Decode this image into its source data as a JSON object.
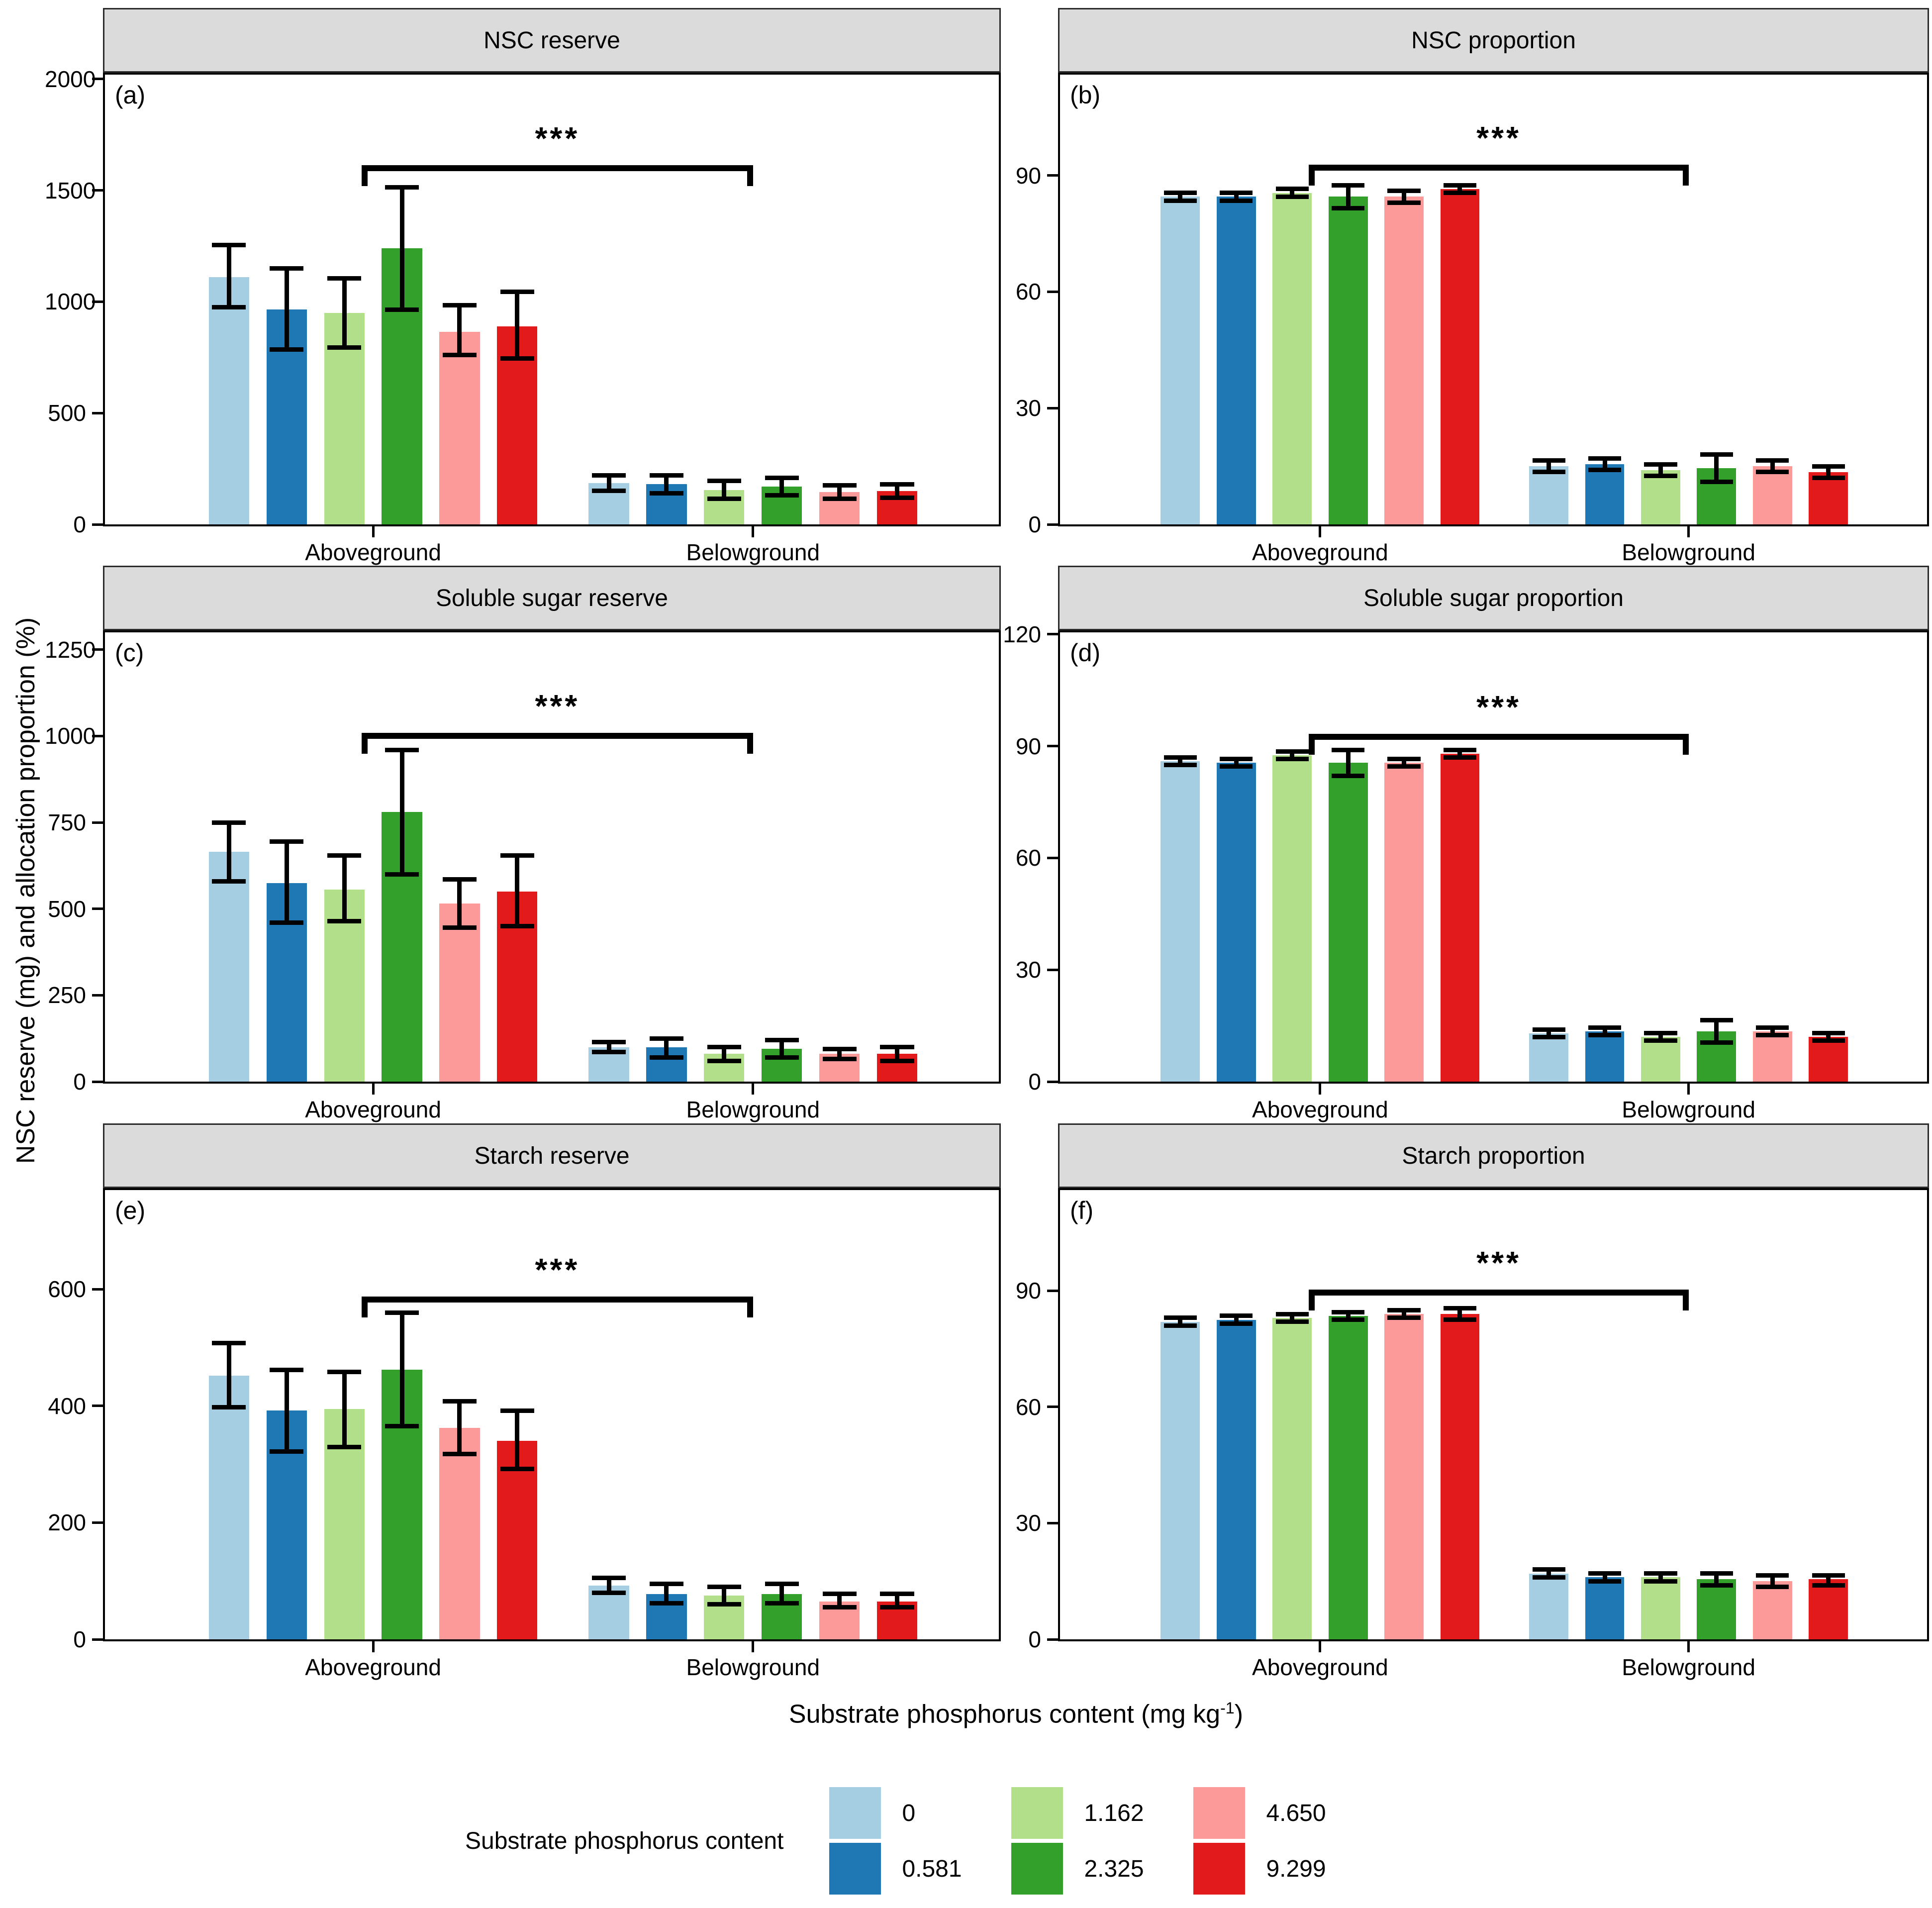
{
  "figure": {
    "y_axis_label": "NSC reserve (mg) and allocation proportion (%)",
    "x_axis_title": {
      "main": "Substrate phosphorus content (mg kg",
      "sup": "-1",
      "close": ")"
    }
  },
  "legend": {
    "title": "Substrate phosphorus content",
    "items": [
      {
        "label": "0",
        "color": "#A6CEE3"
      },
      {
        "label": "0.581",
        "color": "#1F78B4"
      },
      {
        "label": "1.162",
        "color": "#B2DF8A"
      },
      {
        "label": "2.325",
        "color": "#33A02C"
      },
      {
        "label": "4.650",
        "color": "#FB9A99"
      },
      {
        "label": "9.299",
        "color": "#E31A1C"
      }
    ],
    "columns": [
      [
        0,
        1
      ],
      [
        2,
        3
      ],
      [
        4,
        5
      ]
    ]
  },
  "chart_data": [
    {
      "id": "a",
      "letter": "(a)",
      "title": "NSC reserve",
      "type": "bar",
      "unit": "mg",
      "ylim": [
        0,
        2020
      ],
      "yticks": [
        0,
        500,
        1000,
        1500,
        2000
      ],
      "categories": [
        "Aboveground",
        "Belowground"
      ],
      "series": [
        {
          "name": "0",
          "color": "#A6CEE3",
          "values": [
            1110,
            185
          ],
          "err_low": [
            975,
            150
          ],
          "err_high": [
            1255,
            220
          ]
        },
        {
          "name": "0.581",
          "color": "#1F78B4",
          "values": [
            965,
            180
          ],
          "err_low": [
            785,
            140
          ],
          "err_high": [
            1150,
            220
          ]
        },
        {
          "name": "1.162",
          "color": "#B2DF8A",
          "values": [
            950,
            155
          ],
          "err_low": [
            795,
            115
          ],
          "err_high": [
            1105,
            195
          ]
        },
        {
          "name": "2.325",
          "color": "#33A02C",
          "values": [
            1240,
            170
          ],
          "err_low": [
            965,
            130
          ],
          "err_high": [
            1515,
            210
          ]
        },
        {
          "name": "4.650",
          "color": "#FB9A99",
          "values": [
            865,
            145
          ],
          "err_low": [
            760,
            115
          ],
          "err_high": [
            985,
            175
          ]
        },
        {
          "name": "9.299",
          "color": "#E31A1C",
          "values": [
            890,
            150
          ],
          "err_low": [
            745,
            120
          ],
          "err_high": [
            1045,
            180
          ]
        }
      ],
      "significance": {
        "label": "***",
        "value": 1600,
        "from_category": 0,
        "from_series": 3,
        "to_category": 1
      }
    },
    {
      "id": "b",
      "letter": "(b)",
      "title": "NSC proportion",
      "type": "bar",
      "unit": "%",
      "ylim": [
        0,
        116
      ],
      "yticks": [
        0,
        30,
        60,
        90
      ],
      "categories": [
        "Aboveground",
        "Belowground"
      ],
      "series": [
        {
          "name": "0",
          "color": "#A6CEE3",
          "values": [
            84.5,
            15
          ],
          "err_low": [
            83.5,
            13.5
          ],
          "err_high": [
            85.5,
            16.5
          ]
        },
        {
          "name": "0.581",
          "color": "#1F78B4",
          "values": [
            84.5,
            15.5
          ],
          "err_low": [
            83.5,
            14
          ],
          "err_high": [
            85.5,
            17
          ]
        },
        {
          "name": "1.162",
          "color": "#B2DF8A",
          "values": [
            85.5,
            14
          ],
          "err_low": [
            84.5,
            12.5
          ],
          "err_high": [
            86.5,
            15.5
          ]
        },
        {
          "name": "2.325",
          "color": "#33A02C",
          "values": [
            84.5,
            14.5
          ],
          "err_low": [
            81.5,
            11
          ],
          "err_high": [
            87.5,
            18
          ]
        },
        {
          "name": "4.650",
          "color": "#FB9A99",
          "values": [
            84.5,
            15
          ],
          "err_low": [
            83,
            13.5
          ],
          "err_high": [
            86,
            16.5
          ]
        },
        {
          "name": "9.299",
          "color": "#E31A1C",
          "values": [
            86.5,
            13.5
          ],
          "err_low": [
            85.5,
            12
          ],
          "err_high": [
            87.5,
            15
          ]
        }
      ],
      "significance": {
        "label": "***",
        "value": 92,
        "from_category": 0,
        "from_series": 3,
        "to_category": 1
      }
    },
    {
      "id": "c",
      "letter": "(c)",
      "title": "Soluble sugar reserve",
      "type": "bar",
      "unit": "mg",
      "ylim": [
        0,
        1300
      ],
      "yticks": [
        0,
        250,
        500,
        750,
        1000,
        1250
      ],
      "categories": [
        "Aboveground",
        "Belowground"
      ],
      "series": [
        {
          "name": "0",
          "color": "#A6CEE3",
          "values": [
            665,
            100
          ],
          "err_low": [
            580,
            85
          ],
          "err_high": [
            750,
            115
          ]
        },
        {
          "name": "0.581",
          "color": "#1F78B4",
          "values": [
            575,
            100
          ],
          "err_low": [
            460,
            70
          ],
          "err_high": [
            695,
            125
          ]
        },
        {
          "name": "1.162",
          "color": "#B2DF8A",
          "values": [
            555,
            80
          ],
          "err_low": [
            465,
            60
          ],
          "err_high": [
            655,
            100
          ]
        },
        {
          "name": "2.325",
          "color": "#33A02C",
          "values": [
            780,
            95
          ],
          "err_low": [
            600,
            70
          ],
          "err_high": [
            960,
            120
          ]
        },
        {
          "name": "4.650",
          "color": "#FB9A99",
          "values": [
            515,
            80
          ],
          "err_low": [
            445,
            65
          ],
          "err_high": [
            585,
            95
          ]
        },
        {
          "name": "9.299",
          "color": "#E31A1C",
          "values": [
            550,
            80
          ],
          "err_low": [
            450,
            60
          ],
          "err_high": [
            655,
            100
          ]
        }
      ],
      "significance": {
        "label": "***",
        "value": 1000,
        "from_category": 0,
        "from_series": 3,
        "to_category": 1
      }
    },
    {
      "id": "d",
      "letter": "(d)",
      "title": "Soluble sugar proportion",
      "type": "bar",
      "unit": "%",
      "ylim": [
        0,
        120.5
      ],
      "yticks": [
        0,
        30,
        60,
        90,
        120
      ],
      "categories": [
        "Aboveground",
        "Belowground"
      ],
      "series": [
        {
          "name": "0",
          "color": "#A6CEE3",
          "values": [
            86,
            13
          ],
          "err_low": [
            85,
            12
          ],
          "err_high": [
            87,
            14
          ]
        },
        {
          "name": "0.581",
          "color": "#1F78B4",
          "values": [
            85.5,
            13.5
          ],
          "err_low": [
            84.5,
            12.5
          ],
          "err_high": [
            86.5,
            14.5
          ]
        },
        {
          "name": "1.162",
          "color": "#B2DF8A",
          "values": [
            87.5,
            12
          ],
          "err_low": [
            86.5,
            11
          ],
          "err_high": [
            88.5,
            13
          ]
        },
        {
          "name": "2.325",
          "color": "#33A02C",
          "values": [
            85.5,
            13.5
          ],
          "err_low": [
            82,
            10.5
          ],
          "err_high": [
            89,
            16.5
          ]
        },
        {
          "name": "4.650",
          "color": "#FB9A99",
          "values": [
            85.5,
            13.5
          ],
          "err_low": [
            84.5,
            12.5
          ],
          "err_high": [
            86.5,
            14.5
          ]
        },
        {
          "name": "9.299",
          "color": "#E31A1C",
          "values": [
            88,
            12
          ],
          "err_low": [
            87,
            11
          ],
          "err_high": [
            89,
            13
          ]
        }
      ],
      "significance": {
        "label": "***",
        "value": 92.5,
        "from_category": 0,
        "from_series": 3,
        "to_category": 1
      }
    },
    {
      "id": "e",
      "letter": "(e)",
      "title": "Starch reserve",
      "type": "bar",
      "unit": "mg",
      "ylim": [
        0,
        770
      ],
      "yticks": [
        0,
        200,
        400,
        600
      ],
      "categories": [
        "Aboveground",
        "Belowground"
      ],
      "series": [
        {
          "name": "0",
          "color": "#A6CEE3",
          "values": [
            452,
            92
          ],
          "err_low": [
            398,
            80
          ],
          "err_high": [
            508,
            105
          ]
        },
        {
          "name": "0.581",
          "color": "#1F78B4",
          "values": [
            392,
            78
          ],
          "err_low": [
            322,
            62
          ],
          "err_high": [
            462,
            95
          ]
        },
        {
          "name": "1.162",
          "color": "#B2DF8A",
          "values": [
            395,
            75
          ],
          "err_low": [
            330,
            60
          ],
          "err_high": [
            458,
            90
          ]
        },
        {
          "name": "2.325",
          "color": "#33A02C",
          "values": [
            462,
            78
          ],
          "err_low": [
            365,
            62
          ],
          "err_high": [
            560,
            95
          ]
        },
        {
          "name": "4.650",
          "color": "#FB9A99",
          "values": [
            362,
            65
          ],
          "err_low": [
            318,
            55
          ],
          "err_high": [
            408,
            78
          ]
        },
        {
          "name": "9.299",
          "color": "#E31A1C",
          "values": [
            340,
            65
          ],
          "err_low": [
            292,
            55
          ],
          "err_high": [
            392,
            78
          ]
        }
      ],
      "significance": {
        "label": "***",
        "value": 582,
        "from_category": 0,
        "from_series": 3,
        "to_category": 1
      }
    },
    {
      "id": "f",
      "letter": "(f)",
      "title": "Starch proportion",
      "type": "bar",
      "unit": "%",
      "ylim": [
        0,
        116
      ],
      "yticks": [
        0,
        30,
        60,
        90
      ],
      "categories": [
        "Aboveground",
        "Belowground"
      ],
      "series": [
        {
          "name": "0",
          "color": "#A6CEE3",
          "values": [
            82,
            17
          ],
          "err_low": [
            81,
            16
          ],
          "err_high": [
            83,
            18
          ]
        },
        {
          "name": "0.581",
          "color": "#1F78B4",
          "values": [
            82.5,
            16
          ],
          "err_low": [
            81.5,
            15
          ],
          "err_high": [
            83.5,
            17
          ]
        },
        {
          "name": "1.162",
          "color": "#B2DF8A",
          "values": [
            83,
            16
          ],
          "err_low": [
            82,
            15
          ],
          "err_high": [
            84,
            17
          ]
        },
        {
          "name": "2.325",
          "color": "#33A02C",
          "values": [
            83.5,
            15.5
          ],
          "err_low": [
            82.5,
            14
          ],
          "err_high": [
            84.5,
            17
          ]
        },
        {
          "name": "4.650",
          "color": "#FB9A99",
          "values": [
            84,
            15
          ],
          "err_low": [
            83,
            13.5
          ],
          "err_high": [
            85,
            16.5
          ]
        },
        {
          "name": "9.299",
          "color": "#E31A1C",
          "values": [
            84,
            15.5
          ],
          "err_low": [
            82.5,
            14
          ],
          "err_high": [
            85.5,
            16.5
          ]
        }
      ],
      "significance": {
        "label": "***",
        "value": 89.5,
        "from_category": 0,
        "from_series": 3,
        "to_category": 1
      }
    }
  ]
}
